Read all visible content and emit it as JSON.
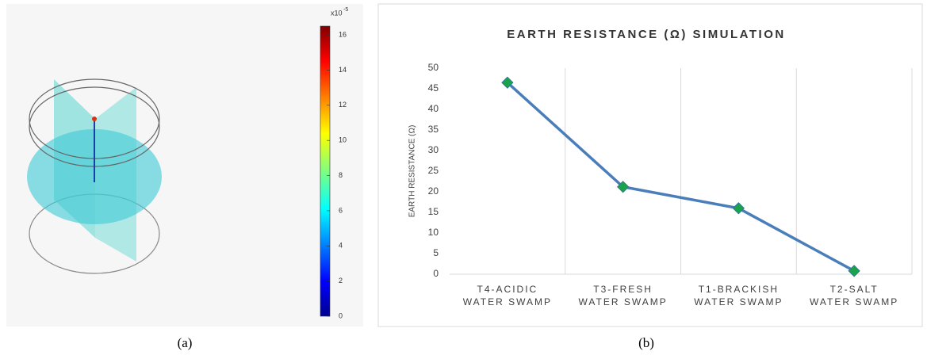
{
  "chart_data": [
    {
      "type": "colorbar",
      "multiplier": "x10",
      "exponent": "-5",
      "ylim": [
        0,
        16.5
      ],
      "yticks": [
        0,
        2,
        4,
        6,
        8,
        10,
        12,
        14,
        16
      ],
      "caption": "(a)"
    },
    {
      "type": "line",
      "title": "EARTH RESISTANCE (Ω) SIMULATION",
      "y_label": "EARTH RESISTANCE (Ω)",
      "categories": [
        "T4-ACIDIC\nWATER SWAMP",
        "T3-FRESH\nWATER SWAMP",
        "T1-BRACKISH\nWATER SWAMP",
        "T2-SALT\nWATER SWAMP"
      ],
      "values": [
        46.5,
        21.2,
        16,
        0.8
      ],
      "color": "#4a7ebb",
      "marker_color": "#1aa34a",
      "ylim": [
        0,
        50
      ],
      "yticks": [
        0,
        5,
        10,
        15,
        20,
        25,
        30,
        35,
        40,
        45,
        50
      ],
      "grid": true,
      "caption": "(b)"
    }
  ]
}
